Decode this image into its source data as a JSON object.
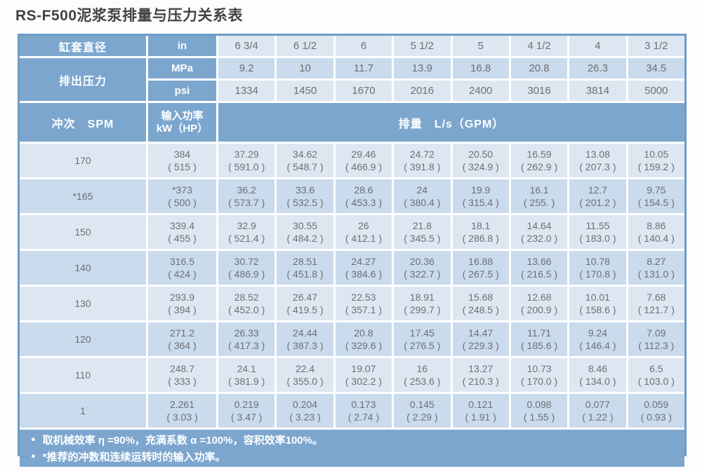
{
  "title": "RS-F500泥浆泵排量与压力关系表",
  "colors": {
    "header_blue": "#7ca6ce",
    "row_light": "#dde7f2",
    "row_dark": "#c9dbed",
    "outer_border": "#6e9cc6",
    "cell_text": "#6e6f72",
    "title_text": "#414244"
  },
  "header": {
    "liner_diameter_label": "缸套直径",
    "liner_unit": "in",
    "liner_sizes": [
      "6 3/4",
      "6 1/2",
      "6",
      "5 1/2",
      "5",
      "4 1/2",
      "4",
      "3 1/2"
    ],
    "discharge_pressure_label": "排出压力",
    "mpa_label": "MPa",
    "mpa_values": [
      "9.2",
      "10",
      "11.7",
      "13.9",
      "16.8",
      "20.8",
      "26.3",
      "34.5"
    ],
    "psi_label": "psi",
    "psi_values": [
      "1334",
      "1450",
      "1670",
      "2016",
      "2400",
      "3016",
      "3814",
      "5000"
    ],
    "strokes_label": "冲次　SPM",
    "power_label_line1": "输入功率",
    "power_label_line2": "kW（HP）",
    "flow_label": "排量　L/s（GPM）"
  },
  "body_rows": [
    {
      "spm": "170",
      "shade": "light",
      "cells": [
        [
          "384",
          "( 515 )"
        ],
        [
          "37.29",
          "( 591.0 )"
        ],
        [
          "34.62",
          "( 548.7 )"
        ],
        [
          "29.46",
          "( 466.9 )"
        ],
        [
          "24.72",
          "( 391.8 )"
        ],
        [
          "20.50",
          "( 324.9 )"
        ],
        [
          "16.59",
          "( 262.9 )"
        ],
        [
          "13.08",
          "( 207.3 )"
        ],
        [
          "10.05",
          "( 159.2 )"
        ]
      ]
    },
    {
      "spm": "*165",
      "shade": "dark",
      "cells": [
        [
          "*373",
          "( 500 )"
        ],
        [
          "36.2",
          "( 573.7 )"
        ],
        [
          "33.6",
          "( 532.5 )"
        ],
        [
          "28.6",
          "( 453.3 )"
        ],
        [
          "24",
          "( 380.4 )"
        ],
        [
          "19.9",
          "( 315.4 )"
        ],
        [
          "16.1",
          "( 255. )"
        ],
        [
          "12.7",
          "( 201.2 )"
        ],
        [
          "9.75",
          "( 154.5 )"
        ]
      ]
    },
    {
      "spm": "150",
      "shade": "light",
      "cells": [
        [
          "339.4",
          "( 455 )"
        ],
        [
          "32.9",
          "( 521.4 )"
        ],
        [
          "30.55",
          "( 484.2 )"
        ],
        [
          "26",
          "( 412.1 )"
        ],
        [
          "21.8",
          "( 345.5 )"
        ],
        [
          "18.1",
          "( 286.8 )"
        ],
        [
          "14.64",
          "( 232.0 )"
        ],
        [
          "11.55",
          "( 183.0 )"
        ],
        [
          "8.86",
          "( 140.4 )"
        ]
      ]
    },
    {
      "spm": "140",
      "shade": "dark",
      "cells": [
        [
          "316.5",
          "( 424 )"
        ],
        [
          "30.72",
          "( 486.9 )"
        ],
        [
          "28.51",
          "( 451.8 )"
        ],
        [
          "24.27",
          "( 384.6 )"
        ],
        [
          "20.36",
          "( 322.7 )"
        ],
        [
          "16.88",
          "( 267.5 )"
        ],
        [
          "13.66",
          "( 216.5 )"
        ],
        [
          "10.78",
          "( 170.8 )"
        ],
        [
          "8.27",
          "( 131.0 )"
        ]
      ]
    },
    {
      "spm": "130",
      "shade": "light",
      "cells": [
        [
          "293.9",
          "( 394 )"
        ],
        [
          "28.52",
          "( 452.0 )"
        ],
        [
          "26.47",
          "( 419.5 )"
        ],
        [
          "22.53",
          "( 357.1 )"
        ],
        [
          "18.91",
          "( 299.7 )"
        ],
        [
          "15.68",
          "( 248.5 )"
        ],
        [
          "12.68",
          "( 200.9 )"
        ],
        [
          "10.01",
          "( 158.6 )"
        ],
        [
          "7.68",
          "( 121.7 )"
        ]
      ]
    },
    {
      "spm": "120",
      "shade": "dark",
      "cells": [
        [
          "271.2",
          "( 364 )"
        ],
        [
          "26.33",
          "( 417.3 )"
        ],
        [
          "24.44",
          "( 387.3 )"
        ],
        [
          "20.8",
          "( 329.6 )"
        ],
        [
          "17.45",
          "( 276.5 )"
        ],
        [
          "14.47",
          "( 229.3 )"
        ],
        [
          "11.71",
          "( 185.6 )"
        ],
        [
          "9.24",
          "( 146.4 )"
        ],
        [
          "7.09",
          "( 112.3 )"
        ]
      ]
    },
    {
      "spm": "110",
      "shade": "light",
      "cells": [
        [
          "248.7",
          "( 333 )"
        ],
        [
          "24.1",
          "( 381.9 )"
        ],
        [
          "22.4",
          "( 355.0 )"
        ],
        [
          "19.07",
          "( 302.2 )"
        ],
        [
          "16",
          "( 253.6 )"
        ],
        [
          "13.27",
          "( 210.3 )"
        ],
        [
          "10.73",
          "( 170.0 )"
        ],
        [
          "8.46",
          "( 134.0 )"
        ],
        [
          "6.5",
          "( 103.0 )"
        ]
      ]
    },
    {
      "spm": "1",
      "shade": "dark",
      "cells": [
        [
          "2.261",
          "( 3.03 )"
        ],
        [
          "0.219",
          "( 3.47 )"
        ],
        [
          "0.204",
          "( 3.23 )"
        ],
        [
          "0.173",
          "( 2.74 )"
        ],
        [
          "0.145",
          "( 2.29 )"
        ],
        [
          "0.121",
          "( 1.91 )"
        ],
        [
          "0.098",
          "( 1.55 )"
        ],
        [
          "0.077",
          "( 1.22 )"
        ],
        [
          "0.059",
          "( 0.93 )"
        ]
      ]
    }
  ],
  "footnotes": [
    "取机械效率 η =90%，充满系数 α =100%，容积效率100%。",
    "*推荐的冲数和连续运转时的输入功率。"
  ]
}
